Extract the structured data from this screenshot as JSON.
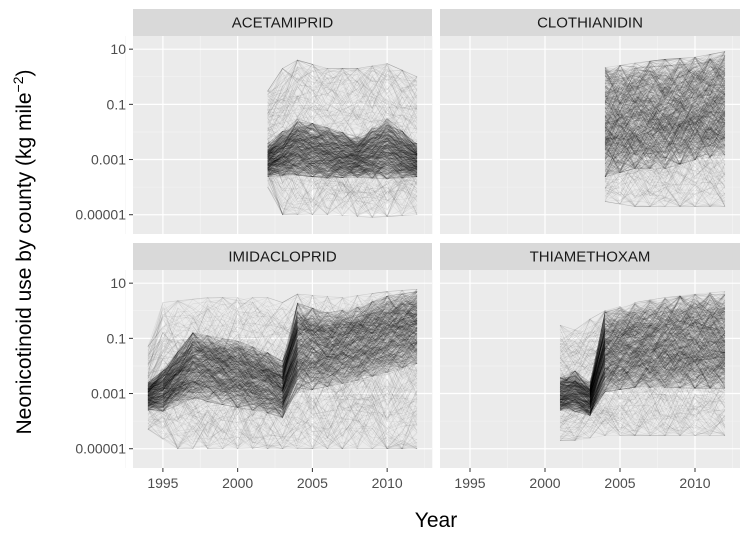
{
  "chart_data": {
    "type": "line",
    "x_label": "Year",
    "y_label_main": "Neonicotinoid use by county (kg mile",
    "y_label_sup": "−2",
    "y_label_close": ")",
    "y_scale": "log10",
    "xlim": [
      1993,
      2013
    ],
    "ylim": [
      2e-06,
      30
    ],
    "x_ticks": [
      1995,
      2000,
      2005,
      2010
    ],
    "x_tick_labels": [
      "1995",
      "2000",
      "2005",
      "2010"
    ],
    "y_ticks": [
      10,
      0.1,
      0.001,
      1e-05
    ],
    "y_tick_labels": [
      "10",
      "0.1",
      "0.001",
      "0.00001"
    ],
    "grid": true,
    "line_color": "#000000",
    "panel_background": "#ebebeb",
    "strip_background": "#d9d9d9",
    "panels": [
      {
        "name": "ACETAMIPRID",
        "years": [
          2002,
          2012
        ],
        "upper_envelope": [
          [
            2002,
            0.3
          ],
          [
            2003,
            2
          ],
          [
            2004,
            4
          ],
          [
            2006,
            2
          ],
          [
            2008,
            2
          ],
          [
            2010,
            3
          ],
          [
            2012,
            1
          ]
        ],
        "lower_envelope": [
          [
            2002,
            0.0001
          ],
          [
            2003,
            1e-05
          ],
          [
            2006,
            1e-05
          ],
          [
            2009,
            8e-06
          ],
          [
            2012,
            1e-05
          ]
        ],
        "dense_band": [
          [
            2002,
            0.0003,
            0.003
          ],
          [
            2004,
            0.0004,
            0.02
          ],
          [
            2006,
            0.0003,
            0.01
          ],
          [
            2008,
            0.0003,
            0.005
          ],
          [
            2010,
            0.0003,
            0.02
          ],
          [
            2012,
            0.0003,
            0.003
          ]
        ]
      },
      {
        "name": "CLOTHIANIDIN",
        "years": [
          2004,
          2012
        ],
        "upper_envelope": [
          [
            2004,
            1.5
          ],
          [
            2006,
            2
          ],
          [
            2008,
            2.5
          ],
          [
            2010,
            3
          ],
          [
            2012,
            6
          ]
        ],
        "lower_envelope": [
          [
            2004,
            3e-05
          ],
          [
            2006,
            2e-05
          ],
          [
            2008,
            2e-05
          ],
          [
            2010,
            2e-05
          ],
          [
            2012,
            2e-05
          ]
        ],
        "dense_band": [
          [
            2004,
            0.0005,
            1
          ],
          [
            2006,
            0.001,
            1.5
          ],
          [
            2008,
            0.001,
            2
          ],
          [
            2010,
            0.002,
            2.5
          ],
          [
            2012,
            0.003,
            4
          ]
        ]
      },
      {
        "name": "IMIDACLOPRID",
        "years": [
          1994,
          2012
        ],
        "upper_envelope": [
          [
            1994,
            0.05
          ],
          [
            1995,
            2
          ],
          [
            1998,
            3
          ],
          [
            2002,
            3
          ],
          [
            2003,
            2
          ],
          [
            2004,
            4
          ],
          [
            2007,
            3
          ],
          [
            2010,
            5
          ],
          [
            2012,
            6
          ]
        ],
        "lower_envelope": [
          [
            1994,
            5e-05
          ],
          [
            1996,
            1e-05
          ],
          [
            2000,
            1e-05
          ],
          [
            2003,
            1e-05
          ],
          [
            2006,
            1e-05
          ],
          [
            2012,
            1e-05
          ]
        ],
        "dense_band": [
          [
            1994,
            0.0003,
            0.002
          ],
          [
            1995,
            0.0003,
            0.005
          ],
          [
            1997,
            0.001,
            0.1
          ],
          [
            2000,
            0.0005,
            0.05
          ],
          [
            2002,
            0.0003,
            0.02
          ],
          [
            2003,
            0.0002,
            0.01
          ],
          [
            2004,
            0.002,
            1
          ],
          [
            2006,
            0.003,
            0.5
          ],
          [
            2008,
            0.005,
            0.8
          ],
          [
            2010,
            0.01,
            2
          ],
          [
            2012,
            0.02,
            3
          ]
        ]
      },
      {
        "name": "THIAMETHOXAM",
        "years": [
          2001,
          2012
        ],
        "upper_envelope": [
          [
            2001,
            0.3
          ],
          [
            2002,
            0.2
          ],
          [
            2003,
            0.5
          ],
          [
            2004,
            1
          ],
          [
            2006,
            2
          ],
          [
            2008,
            3
          ],
          [
            2010,
            4
          ],
          [
            2012,
            5
          ]
        ],
        "lower_envelope": [
          [
            2001,
            2e-05
          ],
          [
            2002,
            2e-05
          ],
          [
            2004,
            3e-05
          ],
          [
            2008,
            3e-05
          ],
          [
            2012,
            3e-05
          ]
        ],
        "dense_band": [
          [
            2001,
            0.0003,
            0.003
          ],
          [
            2002,
            0.0003,
            0.005
          ],
          [
            2003,
            0.0002,
            0.002
          ],
          [
            2004,
            0.002,
            0.5
          ],
          [
            2006,
            0.003,
            1
          ],
          [
            2008,
            0.003,
            1.5
          ],
          [
            2010,
            0.003,
            2
          ],
          [
            2012,
            0.003,
            2
          ]
        ]
      }
    ]
  }
}
